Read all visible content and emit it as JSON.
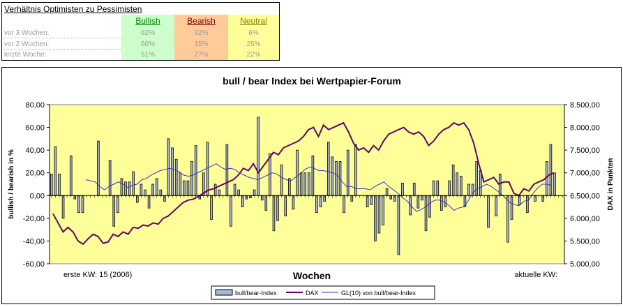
{
  "sentiment": {
    "title": "Verhältnis Optimisten zu Pessimisten",
    "headers": {
      "bullish": "Bullish",
      "bearish": "Bearish",
      "neutral": "Neutral"
    },
    "colors": {
      "bullish": "#ccffcc",
      "bearish": "#ffcc99",
      "neutral": "#ffff99"
    },
    "rows": [
      {
        "label": "vor 3 Wochen:",
        "bullish": "62%",
        "bearish": "32%",
        "neutral": "6%"
      },
      {
        "label": "vor 2 Wochen:",
        "bullish": "60%",
        "bearish": "15%",
        "neutral": "25%"
      },
      {
        "label": "letzte Woche:",
        "bullish": "51%",
        "bearish": "27%",
        "neutral": "22%"
      }
    ]
  },
  "chart_data": {
    "type": "bar",
    "title": "bull / bear Index bei Wertpapier-Forum",
    "xlabel": "Wochen",
    "ylabel": "bullish / bearish in %",
    "y2label": "DAX in Punkten",
    "ylim": [
      -60,
      80
    ],
    "y2lim": [
      5000,
      8500
    ],
    "yticks": [
      "80,00",
      "60,00",
      "40,00",
      "20,00",
      "0,00",
      "-20,00",
      "-40,00",
      "-60,00"
    ],
    "y2ticks": [
      "8.500,00",
      "8.000,00",
      "7.500,00",
      "7.000,00",
      "6.500,00",
      "6.000,00",
      "5.500,00",
      "5.000,00"
    ],
    "annotations": {
      "left": "erste KW: 15 (2006)",
      "right": "aktuelle KW:"
    },
    "legend_position": "bottom",
    "grid": false,
    "plot_background": "#ffff99",
    "series": [
      {
        "name": "bull/bear-Index",
        "kind": "bar",
        "axis": "left",
        "color": "#a9b5d9",
        "values": [
          19,
          43,
          19,
          -20,
          0,
          35,
          -3,
          -15,
          -15,
          0,
          0,
          0,
          48,
          0,
          0,
          31,
          -27,
          -15,
          15,
          12,
          12,
          21,
          -6,
          10,
          5,
          -11,
          10,
          15,
          5,
          -5,
          50,
          42,
          32,
          20,
          13,
          13,
          30,
          44,
          -3,
          20,
          47,
          -21,
          10,
          5,
          0,
          45,
          -27,
          10,
          5,
          -10,
          -3,
          -2,
          5,
          69,
          -4,
          -13,
          37,
          -31,
          -22,
          27,
          -18,
          15,
          -12,
          40,
          20,
          20,
          20,
          35,
          -15,
          -10,
          -5,
          47,
          34,
          30,
          30,
          -15,
          40,
          -5,
          45,
          0,
          0,
          -10,
          -8,
          -40,
          -33,
          -26,
          6,
          -3,
          -5,
          -52,
          11,
          0,
          -17,
          11,
          -11,
          -4,
          -31,
          -19,
          13,
          13,
          -13,
          -10,
          13,
          27,
          20,
          17,
          -10,
          10,
          10,
          30,
          22,
          0,
          -28,
          0,
          -18,
          19,
          0,
          -41,
          -21,
          0,
          -8,
          0,
          -15,
          0,
          -5,
          0,
          -5,
          30,
          45,
          20,
          0,
          0
        ]
      },
      {
        "name": "DAX",
        "kind": "line",
        "axis": "right",
        "color": "#660066",
        "values": [
          6100,
          5900,
          5700,
          5800,
          5700,
          5500,
          5430,
          5550,
          5650,
          5600,
          5450,
          5480,
          5650,
          5600,
          5700,
          5650,
          5800,
          5780,
          5850,
          5830,
          5900,
          5870,
          6000,
          6050,
          6150,
          6250,
          6350,
          6400,
          6420,
          6480,
          6550,
          6620,
          6650,
          6700,
          6750,
          6800,
          6850,
          6950,
          7100,
          7050,
          7200,
          7000,
          7150,
          7300,
          7450,
          7400,
          7550,
          7600,
          7650,
          7700,
          7800,
          7950,
          8000,
          7800,
          8050,
          7950,
          8000,
          8050,
          8100,
          7900,
          7650,
          7500,
          7550,
          7450,
          7600,
          7500,
          7700,
          7850,
          7900,
          7950,
          8000,
          7900,
          7850,
          7900,
          7800,
          7600,
          7700,
          7850,
          7950,
          8000,
          8100,
          8050,
          8100,
          7950,
          7650,
          7200,
          6800,
          6850,
          6900,
          6750,
          6800,
          6800,
          6550,
          6500,
          6650,
          6600,
          6750,
          6800,
          6850,
          6950,
          7000
        ]
      },
      {
        "name": "GL(10) von bull/bear-Index",
        "kind": "line",
        "axis": "left",
        "color": "#3333cc",
        "values": [
          14,
          13,
          12,
          8,
          5,
          8,
          10,
          12,
          10,
          7,
          9,
          10,
          14,
          15,
          18,
          20,
          22,
          23,
          24,
          23,
          21,
          18,
          17,
          18,
          20,
          22,
          24,
          26,
          28,
          25,
          23,
          24,
          23,
          20,
          18,
          16,
          15,
          14,
          16,
          18,
          20,
          19,
          16,
          14,
          13,
          16,
          19,
          23,
          25,
          24,
          22,
          22,
          21,
          20,
          18,
          12,
          8,
          8,
          6,
          6,
          6,
          5,
          8,
          10,
          12,
          8,
          5,
          2,
          -2,
          -5,
          -10,
          -14,
          -12,
          -10,
          -6,
          -4,
          -4,
          -6,
          -9,
          -13,
          -11,
          -10,
          -5,
          2,
          6,
          8,
          10,
          8,
          5,
          2,
          -2,
          -6,
          -8,
          -9,
          -5,
          -4,
          2,
          7,
          10,
          10,
          9
        ]
      }
    ]
  }
}
